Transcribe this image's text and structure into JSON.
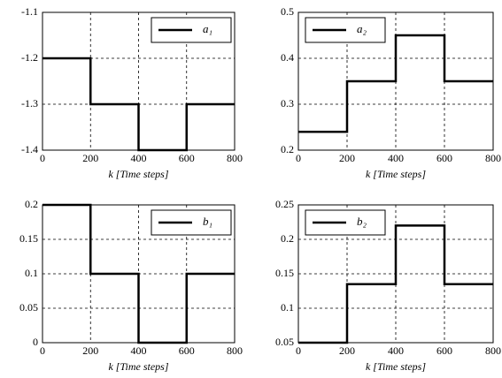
{
  "chart_data": [
    {
      "type": "line",
      "xlabel": "k [Time steps]",
      "x": [
        0,
        200,
        200,
        400,
        400,
        600,
        600,
        800
      ],
      "series": [
        {
          "name": "a₁",
          "color": "#000000",
          "values": [
            -1.2,
            -1.2,
            -1.3,
            -1.3,
            -1.4,
            -1.4,
            -1.3,
            -1.3
          ]
        }
      ],
      "xlim": [
        0,
        800
      ],
      "xticks": [
        0,
        200,
        400,
        600,
        800
      ],
      "ylim": [
        -1.4,
        -1.1
      ],
      "yticks": [
        -1.4,
        -1.3,
        -1.2,
        -1.1
      ],
      "grid": true,
      "legend": "upper right"
    },
    {
      "type": "line",
      "xlabel": "k [Time steps]",
      "x": [
        0,
        200,
        200,
        400,
        400,
        600,
        600,
        800
      ],
      "series": [
        {
          "name": "a₂",
          "color": "#000000",
          "values": [
            0.24,
            0.24,
            0.35,
            0.35,
            0.45,
            0.45,
            0.35,
            0.35
          ]
        }
      ],
      "xlim": [
        0,
        800
      ],
      "xticks": [
        0,
        200,
        400,
        600,
        800
      ],
      "ylim": [
        0.2,
        0.5
      ],
      "yticks": [
        0.2,
        0.3,
        0.4,
        0.5
      ],
      "grid": true,
      "legend": "upper left"
    },
    {
      "type": "line",
      "xlabel": "k [Time steps]",
      "x": [
        0,
        200,
        200,
        400,
        400,
        600,
        600,
        800
      ],
      "series": [
        {
          "name": "b₁",
          "color": "#000000",
          "values": [
            0.2,
            0.2,
            0.1,
            0.1,
            0,
            0,
            0.1,
            0.1
          ]
        }
      ],
      "xlim": [
        0,
        800
      ],
      "xticks": [
        0,
        200,
        400,
        600,
        800
      ],
      "ylim": [
        0,
        0.2
      ],
      "yticks": [
        0,
        0.05,
        0.1,
        0.15,
        0.2
      ],
      "grid": true,
      "legend": "upper right"
    },
    {
      "type": "line",
      "xlabel": "k [Time steps]",
      "x": [
        0,
        200,
        200,
        400,
        400,
        600,
        600,
        800
      ],
      "series": [
        {
          "name": "b₂",
          "color": "#000000",
          "values": [
            0.05,
            0.05,
            0.135,
            0.135,
            0.22,
            0.22,
            0.135,
            0.135
          ]
        }
      ],
      "xlim": [
        0,
        800
      ],
      "xticks": [
        0,
        200,
        400,
        600,
        800
      ],
      "ylim": [
        0.05,
        0.25
      ],
      "yticks": [
        0.05,
        0.1,
        0.15,
        0.2,
        0.25
      ],
      "grid": true,
      "legend": "upper left"
    }
  ]
}
